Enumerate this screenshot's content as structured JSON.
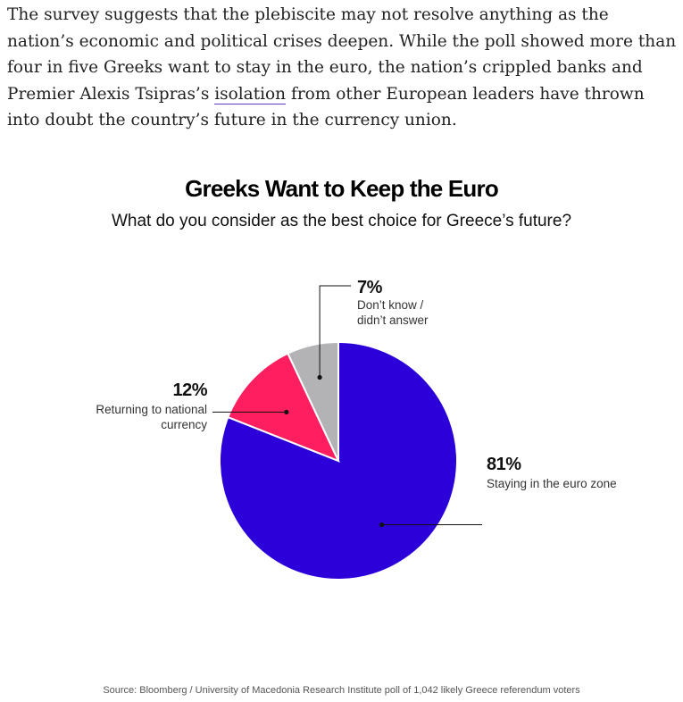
{
  "article": {
    "text_before_link": "The survey suggests that the plebiscite may not resolve anything as the nation’s economic and political crises deepen. While the poll showed more than four in five Greeks want to stay in the euro, the nation’s crippled banks and Premier Alexis Tsipras’s ",
    "link_text": "isolation",
    "text_after_link": " from other European leaders have thrown into doubt the country’s future in the currency union."
  },
  "colors": {
    "euro_zone": "#2b00d9",
    "national_currency": "#ff1e5f",
    "dont_know": "#b3b3b6"
  },
  "chart_data": {
    "type": "pie",
    "title": "Greeks Want to Keep the Euro",
    "subtitle": "What do you consider as the best choice for Greece’s future?",
    "slices": [
      {
        "label": "Staying in the euro zone",
        "value": 81,
        "value_label": "81%"
      },
      {
        "label": "Returning to national currency",
        "value": 12,
        "value_label": "12%"
      },
      {
        "label": "Don’t know / didn’t answer",
        "value": 7,
        "value_label": "7%"
      }
    ],
    "source": "Source: Bloomberg / University of Macedonia Research Institute poll of 1,042 likely Greece referendum voters"
  }
}
